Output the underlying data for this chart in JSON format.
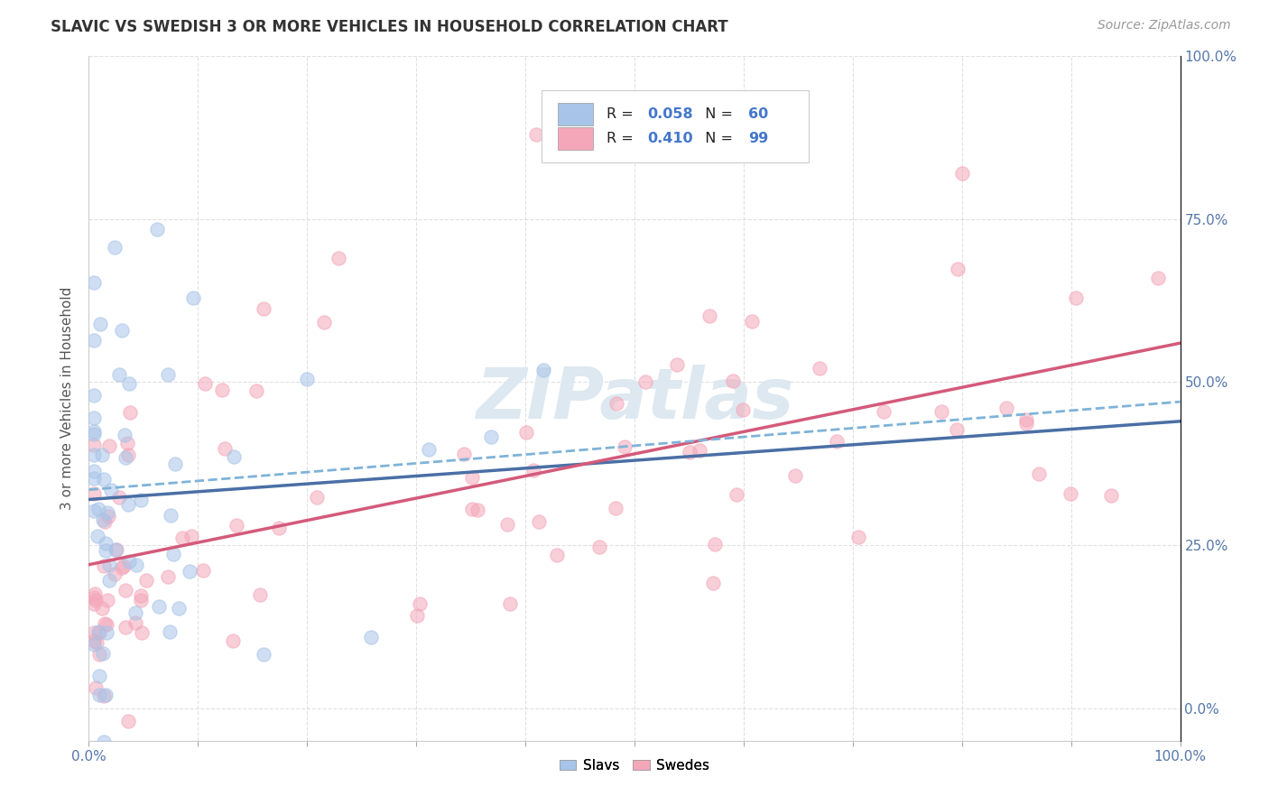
{
  "title": "SLAVIC VS SWEDISH 3 OR MORE VEHICLES IN HOUSEHOLD CORRELATION CHART",
  "source": "Source: ZipAtlas.com",
  "ylabel": "3 or more Vehicles in Household",
  "slavs_R": 0.058,
  "slavs_N": 60,
  "swedes_R": 0.41,
  "swedes_N": 99,
  "slav_color": "#a8c4e8",
  "swede_color": "#f4a7b9",
  "slav_line_color": "#4a6fa5",
  "swede_line_color": "#d45a7a",
  "watermark_color": "#dde8f0",
  "background_color": "#ffffff",
  "grid_color": "#cccccc",
  "tick_color": "#5577aa",
  "title_color": "#333333",
  "source_color": "#999999",
  "xmin": 0.0,
  "xmax": 1.0,
  "ymin": -0.05,
  "ymax": 1.0,
  "slav_line_x0": 0.0,
  "slav_line_x1": 1.0,
  "slav_line_y0": 0.32,
  "slav_line_y1": 0.44,
  "swede_line_x0": 0.0,
  "swede_line_x1": 1.0,
  "swede_line_y0": 0.22,
  "swede_line_y1": 0.56
}
